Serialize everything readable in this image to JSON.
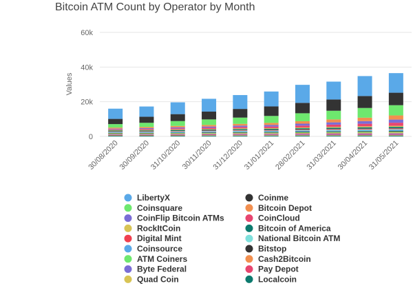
{
  "chart_data": {
    "type": "bar",
    "stacked": true,
    "title": "Bitcoin ATM Count by Operator by Month",
    "xlabel": "",
    "ylabel": "Values",
    "ylim": [
      0,
      60000
    ],
    "yticks": [
      0,
      20000,
      40000,
      60000
    ],
    "ytick_labels": [
      "0",
      "20k",
      "40k",
      "60k"
    ],
    "grid": "y",
    "legend_position": "bottom",
    "categories": [
      "30/08/2020",
      "30/09/2020",
      "31/10/2020",
      "30/11/2020",
      "31/12/2020",
      "31/01/2021",
      "28/02/2021",
      "31/03/2021",
      "30/04/2021",
      "31/05/2021"
    ],
    "series": [
      {
        "name": "Localcoin",
        "color": "#0c7a6e",
        "values": [
          400,
          400,
          400,
          450,
          450,
          450,
          500,
          500,
          500,
          500
        ]
      },
      {
        "name": "Quad Coin",
        "color": "#d8c455",
        "values": [
          200,
          200,
          200,
          250,
          250,
          250,
          250,
          250,
          250,
          250
        ]
      },
      {
        "name": "Pay Depot",
        "color": "#e8456f",
        "values": [
          300,
          300,
          300,
          300,
          350,
          350,
          350,
          400,
          400,
          400
        ]
      },
      {
        "name": "Byte Federal",
        "color": "#7a6dd6",
        "values": [
          300,
          300,
          350,
          350,
          400,
          400,
          450,
          450,
          500,
          550
        ]
      },
      {
        "name": "Cash2Bitcoin",
        "color": "#f28f4f",
        "values": [
          300,
          300,
          350,
          350,
          400,
          400,
          450,
          500,
          500,
          550
        ]
      },
      {
        "name": "ATM Coiners",
        "color": "#6ee86e",
        "values": [
          300,
          300,
          300,
          350,
          350,
          400,
          400,
          450,
          500,
          500
        ]
      },
      {
        "name": "Bitstop",
        "color": "#333333",
        "values": [
          200,
          250,
          250,
          300,
          300,
          300,
          350,
          350,
          400,
          400
        ]
      },
      {
        "name": "Coinsource",
        "color": "#5aa9e8",
        "values": [
          300,
          300,
          350,
          350,
          400,
          400,
          400,
          450,
          450,
          500
        ]
      },
      {
        "name": "National Bitcoin ATM",
        "color": "#7ee0dc",
        "values": [
          300,
          300,
          350,
          350,
          400,
          400,
          450,
          450,
          500,
          500
        ]
      },
      {
        "name": "Digital Mint",
        "color": "#f0404f",
        "values": [
          300,
          300,
          300,
          350,
          350,
          400,
          400,
          450,
          450,
          500
        ]
      },
      {
        "name": "Bitcoin of America",
        "color": "#0c7a6e",
        "values": [
          500,
          500,
          550,
          550,
          600,
          650,
          700,
          750,
          800,
          850
        ]
      },
      {
        "name": "RockItCoin",
        "color": "#d8c455",
        "values": [
          300,
          300,
          350,
          350,
          400,
          400,
          450,
          500,
          550,
          600
        ]
      },
      {
        "name": "CoinCloud",
        "color": "#e8456f",
        "values": [
          400,
          500,
          600,
          700,
          800,
          900,
          1100,
          1300,
          1500,
          1800
        ]
      },
      {
        "name": "CoinFlip Bitcoin ATMs",
        "color": "#7a6dd6",
        "values": [
          400,
          500,
          600,
          700,
          800,
          900,
          1100,
          1300,
          1500,
          1800
        ]
      },
      {
        "name": "Bitcoin Depot",
        "color": "#f28f4f",
        "values": [
          600,
          700,
          800,
          900,
          1000,
          1200,
          1400,
          1700,
          2000,
          2400
        ]
      },
      {
        "name": "Coinsquare",
        "color": "#6ee86e",
        "values": [
          2000,
          2400,
          2800,
          3200,
          3600,
          4000,
          4600,
          5000,
          5600,
          5900
        ]
      },
      {
        "name": "Coinme",
        "color": "#333333",
        "values": [
          3000,
          3500,
          4000,
          4500,
          5000,
          5500,
          6000,
          6500,
          6900,
          7200
        ]
      },
      {
        "name": "LibertyX",
        "color": "#5aa9e8",
        "values": [
          5900,
          5900,
          6800,
          7400,
          8000,
          8600,
          10400,
          10300,
          11500,
          11300
        ]
      }
    ],
    "legend": {
      "column1": [
        {
          "label": "LibertyX",
          "color": "#5aa9e8"
        },
        {
          "label": "Coinsquare",
          "color": "#6ee86e"
        },
        {
          "label": "CoinFlip Bitcoin ATMs",
          "color": "#7a6dd6"
        },
        {
          "label": "RockItCoin",
          "color": "#d8c455"
        },
        {
          "label": "Digital Mint",
          "color": "#f0404f"
        },
        {
          "label": "Coinsource",
          "color": "#5aa9e8"
        },
        {
          "label": "ATM Coiners",
          "color": "#6ee86e"
        },
        {
          "label": "Byte Federal",
          "color": "#7a6dd6"
        },
        {
          "label": "Quad Coin",
          "color": "#d8c455"
        }
      ],
      "column2": [
        {
          "label": "Coinme",
          "color": "#333333"
        },
        {
          "label": "Bitcoin Depot",
          "color": "#f28f4f"
        },
        {
          "label": "CoinCloud",
          "color": "#e8456f"
        },
        {
          "label": "Bitcoin of America",
          "color": "#0c7a6e"
        },
        {
          "label": "National Bitcoin ATM",
          "color": "#7ee0dc"
        },
        {
          "label": "Bitstop",
          "color": "#333333"
        },
        {
          "label": "Cash2Bitcoin",
          "color": "#f28f4f"
        },
        {
          "label": "Pay Depot",
          "color": "#e8456f"
        },
        {
          "label": "Localcoin",
          "color": "#0c7a6e"
        }
      ]
    }
  }
}
